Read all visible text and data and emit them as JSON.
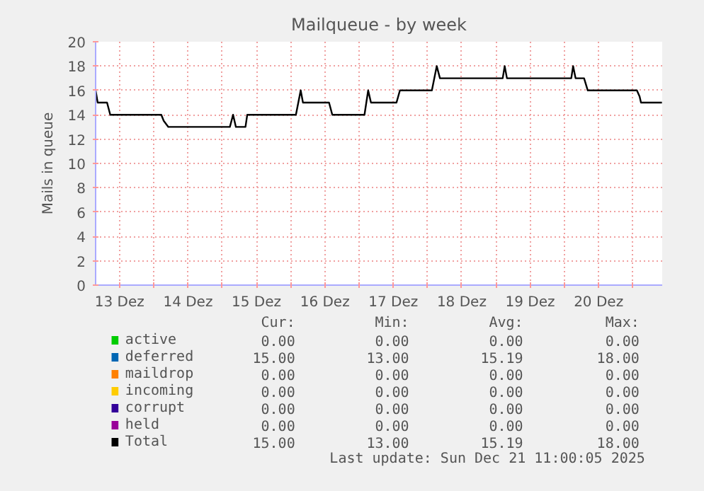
{
  "chart_data": {
    "type": "line",
    "title": "Mailqueue - by week",
    "ylabel": "Mails in queue",
    "x": [
      13.15,
      13.18,
      13.317,
      13.364,
      14.11,
      14.145,
      14.213,
      15.112,
      15.159,
      15.2,
      15.34,
      15.366,
      16.077,
      16.147,
      16.18,
      16.561,
      16.609,
      17.079,
      17.133,
      17.174,
      17.547,
      17.597,
      18.064,
      18.135,
      18.182,
      19.099,
      19.128,
      19.161,
      20.101,
      20.128,
      20.164,
      20.288,
      20.342,
      21.06,
      21.1,
      21.12,
      21.426
    ],
    "xlim": [
      13.15,
      21.43
    ],
    "ylim": [
      0,
      20
    ],
    "xticks": [
      {
        "value": 13.5,
        "label": "13 Dez"
      },
      {
        "value": 14,
        "label": null
      },
      {
        "value": 14.5,
        "label": "14 Dez"
      },
      {
        "value": 15,
        "label": null
      },
      {
        "value": 15.5,
        "label": "15 Dez"
      },
      {
        "value": 16,
        "label": null
      },
      {
        "value": 16.5,
        "label": "16 Dez"
      },
      {
        "value": 17,
        "label": null
      },
      {
        "value": 17.5,
        "label": "17 Dez"
      },
      {
        "value": 18,
        "label": null
      },
      {
        "value": 18.5,
        "label": "18 Dez"
      },
      {
        "value": 19,
        "label": null
      },
      {
        "value": 19.5,
        "label": "19 Dez"
      },
      {
        "value": 20,
        "label": null
      },
      {
        "value": 20.5,
        "label": "20 Dez"
      },
      {
        "value": 21,
        "label": null
      }
    ],
    "yticks": [
      0,
      2,
      4,
      6,
      8,
      10,
      12,
      14,
      16,
      18,
      20
    ],
    "grid": true,
    "legend": "bottom",
    "series": [
      {
        "name": "active",
        "color": "#00cc00",
        "values": [
          null,
          null,
          null,
          null,
          null,
          null,
          null,
          null,
          null,
          null,
          null,
          null,
          null,
          null,
          null,
          null,
          null,
          null,
          null,
          null,
          null,
          null,
          null,
          null,
          null,
          null,
          null,
          null,
          null,
          null,
          null,
          null,
          null,
          null,
          null,
          null,
          null
        ]
      },
      {
        "name": "deferred",
        "color": "#0066b3",
        "values": [
          null,
          null,
          null,
          null,
          null,
          null,
          null,
          null,
          null,
          null,
          null,
          null,
          null,
          null,
          null,
          null,
          null,
          null,
          null,
          null,
          null,
          null,
          null,
          null,
          null,
          null,
          null,
          null,
          null,
          null,
          null,
          null,
          null,
          null,
          null,
          null,
          null
        ]
      },
      {
        "name": "maildrop",
        "color": "#ff8000",
        "values": [
          null,
          null,
          null,
          null,
          null,
          null,
          null,
          null,
          null,
          null,
          null,
          null,
          null,
          null,
          null,
          null,
          null,
          null,
          null,
          null,
          null,
          null,
          null,
          null,
          null,
          null,
          null,
          null,
          null,
          null,
          null,
          null,
          null,
          null,
          null,
          null,
          null
        ]
      },
      {
        "name": "incoming",
        "color": "#ffcc00",
        "values": [
          null,
          null,
          null,
          null,
          null,
          null,
          null,
          null,
          null,
          null,
          null,
          null,
          null,
          null,
          null,
          null,
          null,
          null,
          null,
          null,
          null,
          null,
          null,
          null,
          null,
          null,
          null,
          null,
          null,
          null,
          null,
          null,
          null,
          null,
          null,
          null,
          null
        ]
      },
      {
        "name": "corrupt",
        "color": "#330099",
        "values": [
          null,
          null,
          null,
          null,
          null,
          null,
          null,
          null,
          null,
          null,
          null,
          null,
          null,
          null,
          null,
          null,
          null,
          null,
          null,
          null,
          null,
          null,
          null,
          null,
          null,
          null,
          null,
          null,
          null,
          null,
          null,
          null,
          null,
          null,
          null,
          null,
          null
        ]
      },
      {
        "name": "held",
        "color": "#990099",
        "values": [
          null,
          null,
          null,
          null,
          null,
          null,
          null,
          null,
          null,
          null,
          null,
          null,
          null,
          null,
          null,
          null,
          null,
          null,
          null,
          null,
          null,
          null,
          null,
          null,
          null,
          null,
          null,
          null,
          null,
          null,
          null,
          null,
          null,
          null,
          null,
          null,
          null
        ]
      },
      {
        "name": "Total",
        "color": "#000000",
        "values": [
          16,
          15,
          15,
          14,
          14,
          13.5,
          13,
          13,
          14,
          13,
          13,
          14,
          14,
          16,
          15,
          15,
          14,
          14,
          16,
          15,
          15,
          16,
          16,
          18,
          17,
          17,
          18,
          17,
          17,
          18,
          17,
          17,
          16,
          16,
          15.5,
          15,
          15
        ]
      }
    ],
    "annotations": [
      "Cur:",
      "Min:",
      "Avg:",
      "Max:",
      "0.00",
      "0.00",
      "0.00",
      "0.00",
      "15.00",
      "13.00",
      "15.19",
      "18.00",
      "0.00",
      "0.00",
      "0.00",
      "0.00",
      "0.00",
      "0.00",
      "0.00",
      "0.00",
      "0.00",
      "0.00",
      "0.00",
      "0.00",
      "0.00",
      "0.00",
      "0.00",
      "0.00",
      "15.00",
      "13.00",
      "15.19",
      "18.00",
      "Last update: Sun Dec 21 11:00:05 2025"
    ]
  }
}
